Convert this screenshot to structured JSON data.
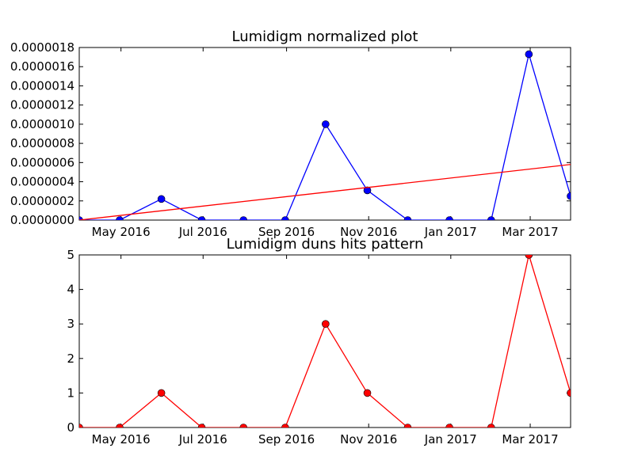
{
  "chart_data": [
    {
      "type": "line",
      "title": "Lumidigm normalized plot",
      "xlabel": "",
      "ylabel": "",
      "x": [
        "2016-03-31",
        "2016-04-30",
        "2016-05-31",
        "2016-06-30",
        "2016-07-31",
        "2016-08-31",
        "2016-09-30",
        "2016-10-31",
        "2016-11-30",
        "2016-12-31",
        "2017-01-31",
        "2017-02-28",
        "2017-03-31"
      ],
      "xlim": [
        "2016-03-31",
        "2017-03-31"
      ],
      "ylim": [
        0,
        1.8e-06
      ],
      "yticks": [
        "0.0000000",
        "0.0000002",
        "0.0000004",
        "0.0000006",
        "0.0000008",
        "0.0000010",
        "0.0000012",
        "0.0000014",
        "0.0000016",
        "0.0000018"
      ],
      "xticks": [
        {
          "date": "2016-05-01",
          "label": "May 2016"
        },
        {
          "date": "2016-07-01",
          "label": "Jul 2016"
        },
        {
          "date": "2016-09-01",
          "label": "Sep 2016"
        },
        {
          "date": "2016-11-01",
          "label": "Nov 2016"
        },
        {
          "date": "2017-01-01",
          "label": "Jan 2017"
        },
        {
          "date": "2017-03-01",
          "label": "Mar 2017"
        }
      ],
      "grid": false,
      "series": [
        {
          "kind": "line-markers",
          "color": "#0000ff",
          "values": [
            0,
            0,
            2.2e-07,
            0,
            0,
            0,
            1e-06,
            3.1e-07,
            0,
            0,
            0,
            1.73e-06,
            2.5e-07
          ]
        },
        {
          "kind": "trend-line",
          "color": "#ff0000",
          "start": [
            "2016-03-31",
            0
          ],
          "end": [
            "2017-03-31",
            5.8e-07
          ]
        }
      ]
    },
    {
      "type": "line",
      "title": "Lumidigm duns hits pattern",
      "xlabel": "",
      "ylabel": "",
      "x": [
        "2016-03-31",
        "2016-04-30",
        "2016-05-31",
        "2016-06-30",
        "2016-07-31",
        "2016-08-31",
        "2016-09-30",
        "2016-10-31",
        "2016-11-30",
        "2016-12-31",
        "2017-01-31",
        "2017-02-28",
        "2017-03-31"
      ],
      "xlim": [
        "2016-03-31",
        "2017-03-31"
      ],
      "ylim": [
        0,
        5
      ],
      "yticks": [
        "0",
        "1",
        "2",
        "3",
        "4",
        "5"
      ],
      "xticks": [
        {
          "date": "2016-05-01",
          "label": "May 2016"
        },
        {
          "date": "2016-07-01",
          "label": "Jul 2016"
        },
        {
          "date": "2016-09-01",
          "label": "Sep 2016"
        },
        {
          "date": "2016-11-01",
          "label": "Nov 2016"
        },
        {
          "date": "2017-01-01",
          "label": "Jan 2017"
        },
        {
          "date": "2017-03-01",
          "label": "Mar 2017"
        }
      ],
      "grid": false,
      "series": [
        {
          "kind": "line-markers",
          "color": "#ff0000",
          "values": [
            0,
            0,
            1,
            0,
            0,
            0,
            3,
            1,
            0,
            0,
            0,
            5,
            1
          ]
        }
      ]
    }
  ]
}
